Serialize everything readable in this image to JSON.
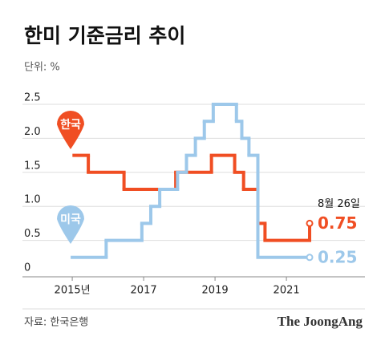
{
  "chart_data": {
    "type": "step-line",
    "title": "한미 기준금리 추이",
    "subtitle": "단위: %",
    "source": "자료: 한국은행",
    "brand": "The JoongAng",
    "annotation": "8월 26일",
    "xlim": [
      2013.65,
      2023.2
    ],
    "ylim": [
      0,
      2.5
    ],
    "xticks": [
      {
        "value": 2015,
        "label": "2015년"
      },
      2017,
      2019,
      2021
    ],
    "yticks": [
      0,
      0.5,
      {
        "value": 1,
        "label": "1.0"
      },
      1.5,
      {
        "value": 2,
        "label": "2.0"
      },
      2.5
    ],
    "grid": true,
    "series": [
      {
        "name": "한국",
        "color": "#f04e23",
        "x": [
          2015.05,
          2015.45,
          2016.45,
          2017.9,
          2018.9,
          2019.55,
          2019.8,
          2020.2,
          2020.4,
          2021.65
        ],
        "values": [
          1.75,
          1.5,
          1.25,
          1.5,
          1.75,
          1.5,
          1.25,
          0.75,
          0.5,
          0.75
        ]
      },
      {
        "name": "미국",
        "color": "#9dc8ea",
        "x": [
          2015.0,
          2015.95,
          2016.95,
          2017.2,
          2017.45,
          2017.95,
          2018.2,
          2018.45,
          2018.7,
          2018.95,
          2019.6,
          2019.75,
          2019.95,
          2020.2,
          2021.65
        ],
        "values": [
          0.25,
          0.5,
          0.75,
          1.0,
          1.25,
          1.5,
          1.75,
          2.0,
          2.25,
          2.5,
          2.25,
          2.0,
          1.75,
          0.25,
          0.25
        ]
      }
    ]
  }
}
